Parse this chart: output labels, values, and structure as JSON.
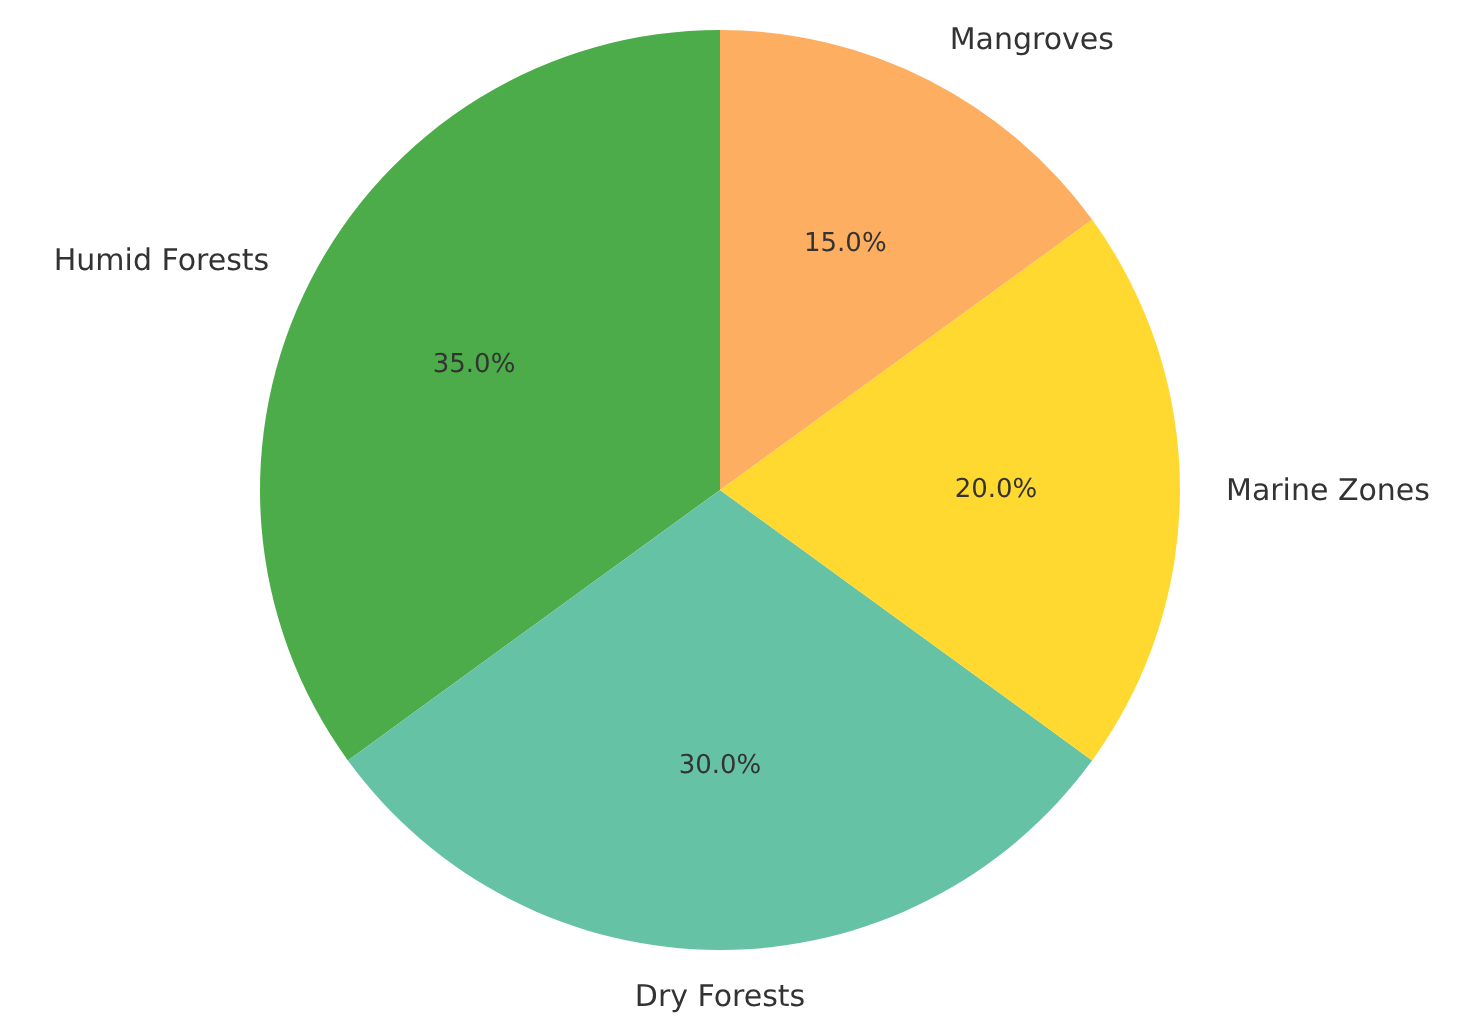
{
  "chart_data": {
    "type": "pie",
    "categories": [
      "Humid Forests",
      "Dry Forests",
      "Marine Zones",
      "Mangroves"
    ],
    "values": [
      35,
      30,
      20,
      15
    ],
    "value_labels": [
      "35.0%",
      "30.0%",
      "20.0%",
      "15.0%"
    ],
    "colors": [
      "#4dac4a",
      "#66c2a5",
      "#ffd92f",
      "#fdae61"
    ],
    "legend": false
  }
}
